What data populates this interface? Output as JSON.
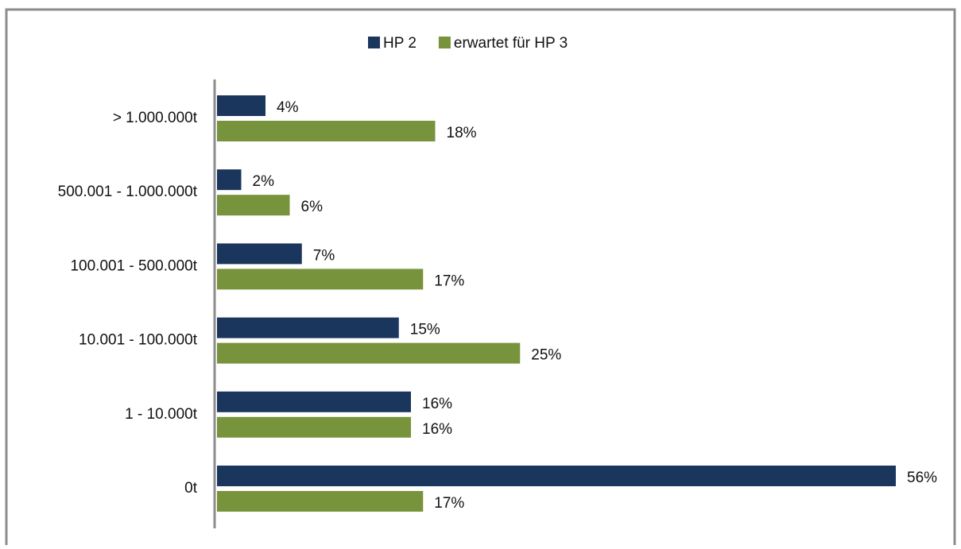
{
  "chart_data": {
    "type": "hbar",
    "categories": [
      "> 1.000.000t",
      "500.001 - 1.000.000t",
      "100.001 - 500.000t",
      "10.001 - 100.000t",
      "1 - 10.000t",
      "0t"
    ],
    "series": [
      {
        "name": "HP 2",
        "color": "#1b365d",
        "values": [
          4,
          2,
          7,
          15,
          16,
          56
        ],
        "value_labels": [
          "4%",
          "2%",
          "7%",
          "15%",
          "16%",
          "56%"
        ]
      },
      {
        "name": "erwartet für HP 3",
        "color": "#77933c",
        "values": [
          18,
          6,
          17,
          25,
          16,
          17
        ],
        "value_labels": [
          "18%",
          "6%",
          "17%",
          "25%",
          "16%",
          "17%"
        ]
      }
    ],
    "legend": "top"
  }
}
